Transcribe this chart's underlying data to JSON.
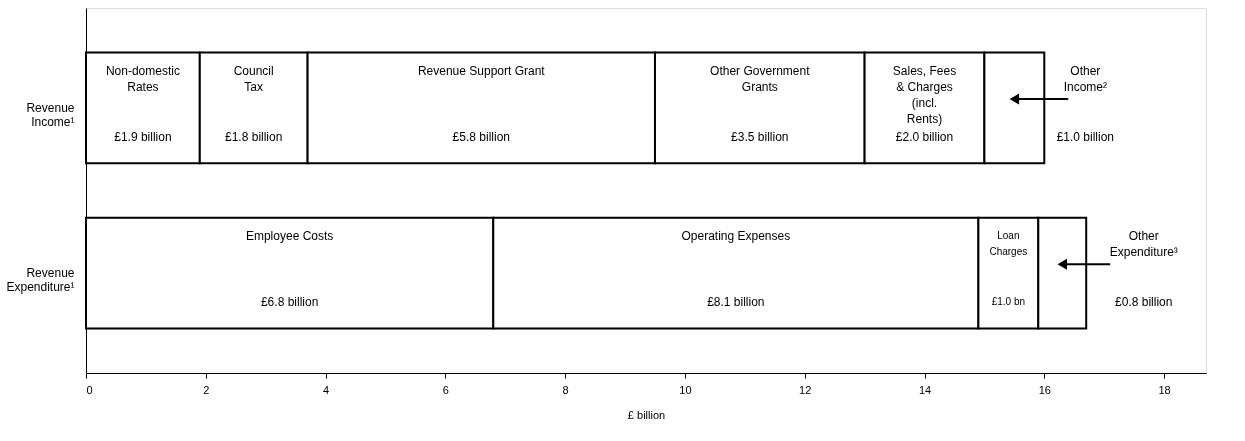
{
  "chart_data": {
    "type": "bar",
    "orientation": "horizontal",
    "stacked": true,
    "categories": [
      "Revenue Income¹",
      "Revenue Expenditure¹"
    ],
    "xlabel": "£ billion",
    "xlim": [
      0,
      18.7
    ],
    "xticks": [
      0,
      2,
      4,
      6,
      8,
      10,
      12,
      14,
      16,
      18
    ],
    "grid": false,
    "legend": false,
    "series": [
      {
        "name": "Non-domestic Rates",
        "color": "#ffffff",
        "values": [
          1.9,
          null
        ],
        "value_labels": [
          "£1.9 billion",
          null
        ]
      },
      {
        "name": "Council Tax",
        "color": "#ffffff",
        "values": [
          1.8,
          null
        ],
        "value_labels": [
          "£1.8 billion",
          null
        ]
      },
      {
        "name": "Revenue Support Grant",
        "color": "#ffffff",
        "values": [
          5.8,
          null
        ],
        "value_labels": [
          "£5.8 billion",
          null
        ]
      },
      {
        "name": "Other Government Grants",
        "color": "#ffffff",
        "values": [
          3.5,
          null
        ],
        "value_labels": [
          "£3.5 billion",
          null
        ]
      },
      {
        "name": "Sales, Fees & Charges (incl. Rents)",
        "color": "#ffffff",
        "values": [
          2.0,
          null
        ],
        "value_labels": [
          "£2.0 billion",
          null
        ]
      },
      {
        "name": "Other Income²",
        "color": "#ffffff",
        "values": [
          1.0,
          null
        ],
        "value_labels": [
          "£1.0 billion",
          null
        ]
      },
      {
        "name": "Employee Costs",
        "color": "#ffffff",
        "values": [
          null,
          6.8
        ],
        "value_labels": [
          null,
          "£6.8 billion"
        ]
      },
      {
        "name": "Operating Expenses",
        "color": "#ffffff",
        "values": [
          null,
          8.1
        ],
        "value_labels": [
          null,
          "£8.1 billion"
        ]
      },
      {
        "name": "Loan Charges",
        "color": "#ffffff",
        "values": [
          null,
          1.0
        ],
        "value_labels": [
          null,
          "£1.0 bn"
        ]
      },
      {
        "name": "Other Expenditure³",
        "color": "#ffffff",
        "values": [
          null,
          0.8
        ],
        "value_labels": [
          null,
          "£0.8 billion"
        ]
      }
    ]
  }
}
